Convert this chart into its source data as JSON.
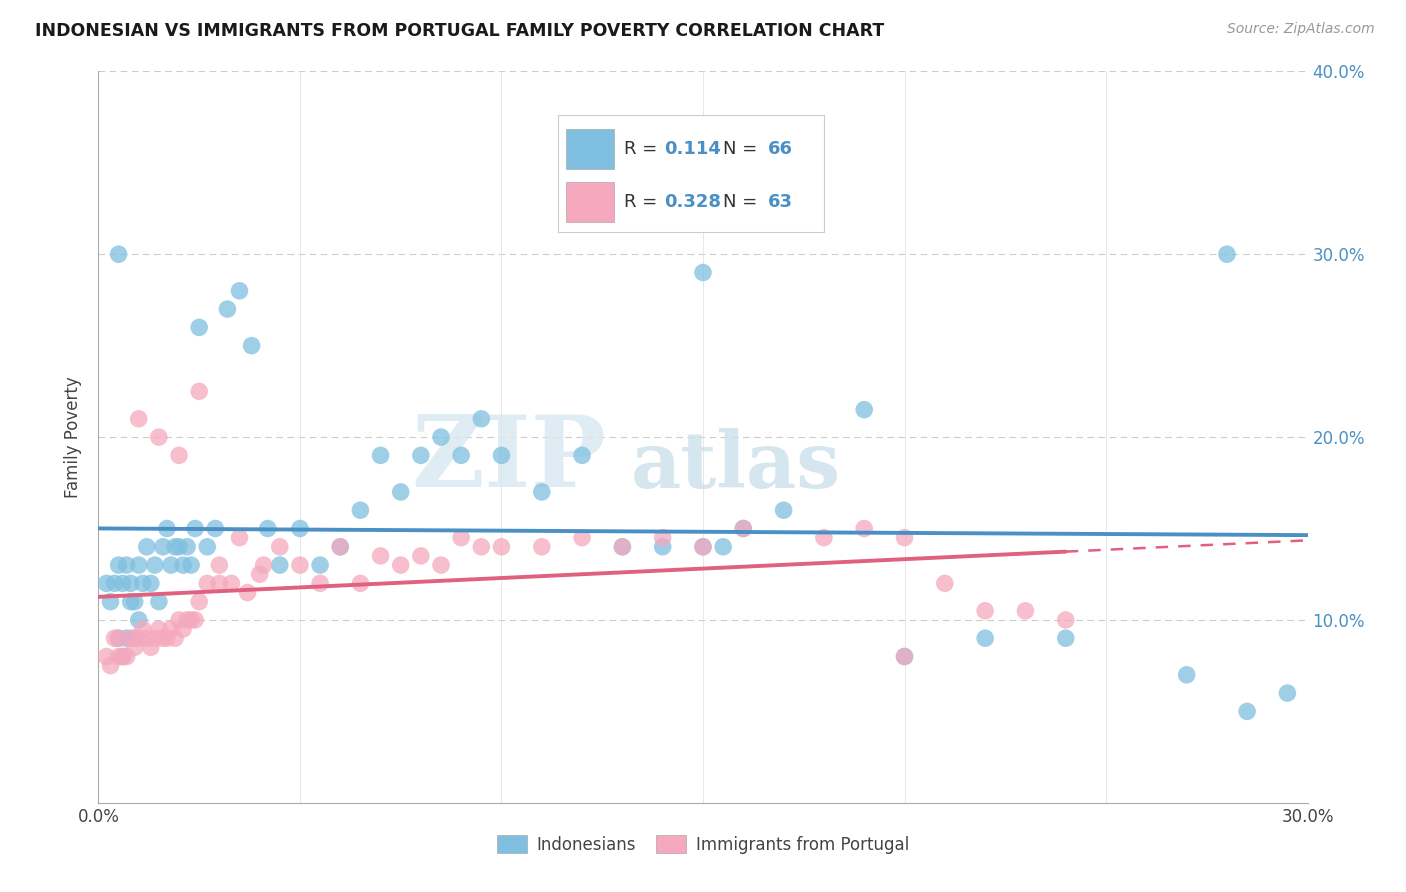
{
  "title": "INDONESIAN VS IMMIGRANTS FROM PORTUGAL FAMILY POVERTY CORRELATION CHART",
  "source": "Source: ZipAtlas.com",
  "ylabel_label": "Family Poverty",
  "xlim": [
    0.0,
    0.3
  ],
  "ylim": [
    0.0,
    0.4
  ],
  "xtick_vals": [
    0.0,
    0.05,
    0.1,
    0.15,
    0.2,
    0.25,
    0.3
  ],
  "ytick_vals": [
    0.0,
    0.1,
    0.2,
    0.3,
    0.4
  ],
  "blue_color": "#7fbfdf",
  "pink_color": "#f5a8be",
  "blue_line_color": "#4a90c4",
  "pink_line_color": "#e06080",
  "R_blue": 0.114,
  "N_blue": 66,
  "R_pink": 0.328,
  "N_pink": 63,
  "legend_labels": [
    "Indonesians",
    "Immigrants from Portugal"
  ],
  "watermark_zip": "ZIP",
  "watermark_atlas": "atlas",
  "blue_scatter_x": [
    0.002,
    0.003,
    0.004,
    0.005,
    0.005,
    0.006,
    0.006,
    0.007,
    0.007,
    0.008,
    0.008,
    0.009,
    0.009,
    0.01,
    0.01,
    0.011,
    0.012,
    0.013,
    0.014,
    0.015,
    0.016,
    0.017,
    0.018,
    0.019,
    0.02,
    0.021,
    0.022,
    0.023,
    0.024,
    0.025,
    0.027,
    0.029,
    0.032,
    0.035,
    0.038,
    0.042,
    0.045,
    0.05,
    0.055,
    0.06,
    0.065,
    0.07,
    0.075,
    0.08,
    0.085,
    0.09,
    0.095,
    0.1,
    0.11,
    0.12,
    0.13,
    0.14,
    0.15,
    0.155,
    0.16,
    0.17,
    0.19,
    0.2,
    0.22,
    0.24,
    0.27,
    0.28,
    0.285,
    0.295,
    0.15,
    0.005
  ],
  "blue_scatter_y": [
    0.12,
    0.11,
    0.12,
    0.13,
    0.09,
    0.12,
    0.08,
    0.13,
    0.09,
    0.11,
    0.12,
    0.09,
    0.11,
    0.1,
    0.13,
    0.12,
    0.14,
    0.12,
    0.13,
    0.11,
    0.14,
    0.15,
    0.13,
    0.14,
    0.14,
    0.13,
    0.14,
    0.13,
    0.15,
    0.26,
    0.14,
    0.15,
    0.27,
    0.28,
    0.25,
    0.15,
    0.13,
    0.15,
    0.13,
    0.14,
    0.16,
    0.19,
    0.17,
    0.19,
    0.2,
    0.19,
    0.21,
    0.19,
    0.17,
    0.19,
    0.14,
    0.14,
    0.14,
    0.14,
    0.15,
    0.16,
    0.215,
    0.08,
    0.09,
    0.09,
    0.07,
    0.3,
    0.05,
    0.06,
    0.29,
    0.3
  ],
  "pink_scatter_x": [
    0.002,
    0.003,
    0.004,
    0.005,
    0.006,
    0.007,
    0.008,
    0.009,
    0.01,
    0.011,
    0.012,
    0.013,
    0.014,
    0.015,
    0.016,
    0.017,
    0.018,
    0.019,
    0.02,
    0.021,
    0.022,
    0.023,
    0.024,
    0.025,
    0.027,
    0.03,
    0.033,
    0.037,
    0.041,
    0.045,
    0.05,
    0.055,
    0.06,
    0.065,
    0.07,
    0.075,
    0.08,
    0.085,
    0.09,
    0.095,
    0.1,
    0.11,
    0.12,
    0.13,
    0.14,
    0.15,
    0.16,
    0.18,
    0.19,
    0.2,
    0.21,
    0.22,
    0.23,
    0.24,
    0.015,
    0.02,
    0.005,
    0.01,
    0.025,
    0.03,
    0.035,
    0.04,
    0.2
  ],
  "pink_scatter_y": [
    0.08,
    0.075,
    0.09,
    0.09,
    0.08,
    0.08,
    0.09,
    0.085,
    0.09,
    0.095,
    0.09,
    0.085,
    0.09,
    0.095,
    0.09,
    0.09,
    0.095,
    0.09,
    0.1,
    0.095,
    0.1,
    0.1,
    0.1,
    0.11,
    0.12,
    0.12,
    0.12,
    0.115,
    0.13,
    0.14,
    0.13,
    0.12,
    0.14,
    0.12,
    0.135,
    0.13,
    0.135,
    0.13,
    0.145,
    0.14,
    0.14,
    0.14,
    0.145,
    0.14,
    0.145,
    0.14,
    0.15,
    0.145,
    0.15,
    0.145,
    0.12,
    0.105,
    0.105,
    0.1,
    0.2,
    0.19,
    0.08,
    0.21,
    0.225,
    0.13,
    0.145,
    0.125,
    0.08
  ]
}
